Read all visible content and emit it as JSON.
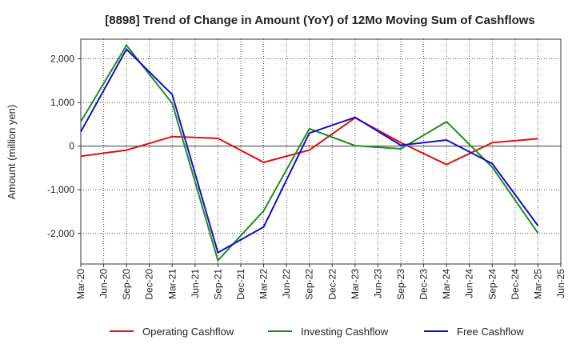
{
  "chart_data": {
    "type": "line",
    "title": "[8898]  Trend of Change in Amount (YoY) of 12Mo Moving Sum of Cashflows",
    "xlabel": "",
    "ylabel": "Amount (million yen)",
    "ylim": [
      -2700,
      2450
    ],
    "yticks": [
      2000,
      1000,
      0,
      -1000,
      -2000
    ],
    "ytick_labels": [
      "2,000",
      "1,000",
      "0",
      "-1,000",
      "-2,000"
    ],
    "categories": [
      "Mar-20",
      "Jun-20",
      "Sep-20",
      "Dec-20",
      "Mar-21",
      "Jun-21",
      "Sep-21",
      "Dec-21",
      "Mar-22",
      "Jun-22",
      "Sep-22",
      "Dec-22",
      "Mar-23",
      "Jun-23",
      "Sep-23",
      "Dec-23",
      "Mar-24",
      "Jun-24",
      "Sep-24",
      "Dec-24",
      "Mar-25",
      "Jun-25"
    ],
    "grid": true,
    "legend_position": "bottom",
    "series": [
      {
        "name": "Operating Cashflow",
        "color": "#dd1111",
        "values": [
          -230,
          null,
          -90,
          null,
          220,
          null,
          180,
          null,
          -370,
          null,
          -90,
          null,
          650,
          null,
          80,
          null,
          -420,
          null,
          80,
          null,
          170,
          null
        ]
      },
      {
        "name": "Investing Cashflow",
        "color": "#228b22",
        "values": [
          560,
          null,
          2310,
          null,
          980,
          null,
          -2620,
          null,
          -1480,
          null,
          400,
          null,
          10,
          null,
          -60,
          null,
          560,
          null,
          -480,
          null,
          -1990,
          null
        ]
      },
      {
        "name": "Free Cashflow",
        "color": "#1010cc",
        "values": [
          330,
          null,
          2220,
          null,
          1180,
          null,
          -2440,
          null,
          -1850,
          null,
          300,
          null,
          660,
          null,
          20,
          null,
          140,
          null,
          -400,
          null,
          -1820,
          null
        ]
      }
    ]
  }
}
